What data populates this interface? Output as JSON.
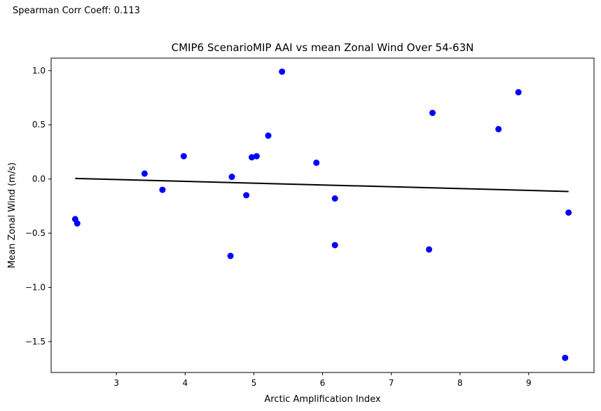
{
  "annotation": "Spearman Corr Coeff: 0.113",
  "chart_data": {
    "type": "scatter",
    "title": "CMIP6 ScenarioMIP AAI vs mean Zonal Wind Over 54-63N",
    "xlabel": "Arctic Amplification Index",
    "ylabel": "Mean Zonal Wind (m/s)",
    "xlim": [
      2.05,
      9.95
    ],
    "ylim": [
      -1.785,
      1.115
    ],
    "xticks": [
      3,
      4,
      5,
      6,
      7,
      8,
      9
    ],
    "xtick_labels": [
      "3",
      "4",
      "5",
      "6",
      "7",
      "8",
      "9"
    ],
    "yticks": [
      -1.5,
      -1.0,
      -0.5,
      0.0,
      0.5,
      1.0
    ],
    "ytick_labels": [
      "−1.5",
      "−1.0",
      "−0.5",
      "0.0",
      "0.5",
      "1.0"
    ],
    "grid": false,
    "series": [
      {
        "kind": "points",
        "color": "#0000ff",
        "x": [
          2.4,
          2.43,
          3.41,
          3.67,
          3.98,
          4.66,
          4.68,
          4.89,
          4.97,
          5.04,
          5.21,
          5.41,
          5.91,
          6.18,
          6.18,
          7.55,
          7.6,
          8.56,
          8.85,
          9.53,
          9.58
        ],
        "y": [
          -0.37,
          -0.41,
          0.05,
          -0.1,
          0.21,
          -0.71,
          0.02,
          -0.15,
          0.2,
          0.21,
          0.4,
          0.99,
          0.15,
          -0.61,
          -0.18,
          -0.65,
          0.61,
          0.46,
          0.8,
          -1.65,
          -0.31
        ]
      },
      {
        "kind": "fit-line",
        "color": "#000000",
        "x": [
          2.4,
          9.58
        ],
        "y": [
          0.005,
          -0.115
        ]
      }
    ]
  }
}
